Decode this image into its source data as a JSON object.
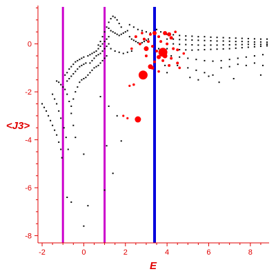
{
  "chart_data": {
    "type": "scatter",
    "title": "",
    "xlabel": "E",
    "ylabel": "<J3>",
    "xlim": [
      -2.2,
      8.9
    ],
    "ylim": [
      -8.3,
      1.6
    ],
    "xticks": [
      -2,
      0,
      2,
      4,
      6,
      8
    ],
    "yticks": [
      0,
      -2,
      -4,
      -6,
      -8
    ],
    "grid": false,
    "colors": {
      "axis": "#e00000",
      "black_points": "#000000",
      "red_points": "#ff0000",
      "magenta_lines": "#cc00cc",
      "blue_line": "#0000dd"
    },
    "vertical_lines": [
      {
        "x": -1.0,
        "color": "#cc00cc"
      },
      {
        "x": 1.0,
        "color": "#cc00cc"
      },
      {
        "x": 3.4,
        "color": "#0000dd"
      }
    ],
    "black_series": [
      [
        -2.0,
        -2.5
      ],
      [
        -1.9,
        -2.65
      ],
      [
        -1.8,
        -2.8
      ],
      [
        -1.7,
        -3.0
      ],
      [
        -1.6,
        -3.2
      ],
      [
        -1.5,
        -3.4
      ],
      [
        -1.4,
        -3.6
      ],
      [
        -1.3,
        -3.8
      ],
      [
        -1.2,
        -4.1
      ],
      [
        -1.1,
        -4.4
      ],
      [
        -1.05,
        -4.75
      ],
      [
        -1.5,
        -2.1
      ],
      [
        -1.4,
        -2.3
      ],
      [
        -1.3,
        -2.5
      ],
      [
        -1.2,
        -2.8
      ],
      [
        -1.1,
        -3.1
      ],
      [
        -0.95,
        -3.5
      ],
      [
        -0.85,
        -3.9
      ],
      [
        -0.75,
        -4.4
      ],
      [
        -0.8,
        -6.4
      ],
      [
        -0.6,
        -6.6
      ],
      [
        -1.3,
        -1.55
      ],
      [
        -1.2,
        -1.6
      ],
      [
        -1.1,
        -1.7
      ],
      [
        -1.0,
        -1.8
      ],
      [
        -0.9,
        -1.9
      ],
      [
        -0.8,
        -2.1
      ],
      [
        -0.7,
        -2.4
      ],
      [
        -0.6,
        -2.9
      ],
      [
        -0.5,
        -3.4
      ],
      [
        -0.4,
        -3.9
      ],
      [
        -0.9,
        -1.3
      ],
      [
        -0.8,
        -1.2
      ],
      [
        -0.7,
        -1.05
      ],
      [
        -0.6,
        -0.95
      ],
      [
        -0.5,
        -0.85
      ],
      [
        -0.4,
        -0.75
      ],
      [
        -0.3,
        -0.7
      ],
      [
        -0.2,
        -0.65
      ],
      [
        -0.1,
        -0.6
      ],
      [
        0.0,
        -0.55
      ],
      [
        -0.8,
        -1.55
      ],
      [
        -0.7,
        -1.45
      ],
      [
        -0.6,
        -1.35
      ],
      [
        -0.5,
        -1.25
      ],
      [
        -0.4,
        -1.15
      ],
      [
        -0.3,
        -1.05
      ],
      [
        -0.2,
        -0.95
      ],
      [
        -0.1,
        -0.9
      ],
      [
        0.0,
        -0.85
      ],
      [
        0.1,
        -0.8
      ],
      [
        -0.6,
        -2.6
      ],
      [
        -0.5,
        -2.3
      ],
      [
        -0.4,
        -2.0
      ],
      [
        -0.3,
        -1.8
      ],
      [
        -0.2,
        -1.6
      ],
      [
        -0.1,
        -1.5
      ],
      [
        0.0,
        -1.45
      ],
      [
        0.1,
        -1.4
      ],
      [
        0.2,
        -1.3
      ],
      [
        0.3,
        -1.2
      ],
      [
        0.2,
        -0.5
      ],
      [
        0.3,
        -0.45
      ],
      [
        0.4,
        -0.4
      ],
      [
        0.5,
        -0.35
      ],
      [
        0.6,
        -0.3
      ],
      [
        0.7,
        -0.2
      ],
      [
        0.8,
        -0.1
      ],
      [
        0.9,
        0.0
      ],
      [
        1.0,
        0.1
      ],
      [
        1.1,
        0.2
      ],
      [
        1.2,
        0.3
      ],
      [
        0.3,
        -0.8
      ],
      [
        0.4,
        -0.7
      ],
      [
        0.5,
        -0.6
      ],
      [
        0.6,
        -0.5
      ],
      [
        0.7,
        -0.45
      ],
      [
        0.8,
        -0.4
      ],
      [
        0.9,
        -0.3
      ],
      [
        1.0,
        -0.2
      ],
      [
        1.1,
        -0.1
      ],
      [
        1.2,
        0.0
      ],
      [
        0.4,
        -1.1
      ],
      [
        0.5,
        -1.0
      ],
      [
        0.6,
        -0.95
      ],
      [
        0.7,
        -0.9
      ],
      [
        0.8,
        -0.8
      ],
      [
        0.9,
        -0.7
      ],
      [
        1.0,
        -0.6
      ],
      [
        1.1,
        -0.5
      ],
      [
        0.7,
        -0.05
      ],
      [
        0.8,
        0.1
      ],
      [
        0.9,
        0.3
      ],
      [
        1.0,
        0.5
      ],
      [
        1.1,
        0.7
      ],
      [
        1.2,
        0.9
      ],
      [
        1.3,
        1.05
      ],
      [
        1.4,
        1.15
      ],
      [
        1.5,
        1.1
      ],
      [
        1.6,
        1.0
      ],
      [
        1.7,
        0.85
      ],
      [
        1.8,
        0.7
      ],
      [
        1.2,
        0.65
      ],
      [
        1.3,
        0.55
      ],
      [
        1.4,
        0.5
      ],
      [
        1.5,
        0.45
      ],
      [
        1.6,
        0.4
      ],
      [
        1.7,
        0.35
      ],
      [
        1.8,
        0.4
      ],
      [
        1.9,
        0.45
      ],
      [
        2.0,
        0.5
      ],
      [
        2.1,
        0.55
      ],
      [
        1.3,
        -0.2
      ],
      [
        1.5,
        -0.3
      ],
      [
        1.7,
        -0.35
      ],
      [
        1.9,
        -0.4
      ],
      [
        2.1,
        -0.35
      ],
      [
        2.3,
        -0.3
      ],
      [
        0.0,
        -4.6
      ],
      [
        0.2,
        -6.75
      ],
      [
        0.0,
        -7.6
      ],
      [
        1.0,
        -6.1
      ],
      [
        1.1,
        -4.25
      ],
      [
        1.4,
        -5.4
      ],
      [
        1.8,
        -4.05
      ],
      [
        1.6,
        -3.0
      ],
      [
        1.2,
        -2.6
      ],
      [
        0.8,
        -2.2
      ],
      [
        2.2,
        0.3
      ],
      [
        2.3,
        0.2
      ],
      [
        2.4,
        0.15
      ],
      [
        2.5,
        0.1
      ],
      [
        2.6,
        0.05
      ],
      [
        2.7,
        0.0
      ],
      [
        2.8,
        0.05
      ],
      [
        2.9,
        0.1
      ],
      [
        3.0,
        0.15
      ],
      [
        3.1,
        0.2
      ],
      [
        2.2,
        0.8
      ],
      [
        2.4,
        0.7
      ],
      [
        2.6,
        0.6
      ],
      [
        2.8,
        0.55
      ],
      [
        3.0,
        0.5
      ],
      [
        3.2,
        0.45
      ],
      [
        3.4,
        0.4
      ],
      [
        4.0,
        0.4
      ],
      [
        4.3,
        0.38
      ],
      [
        4.6,
        0.35
      ],
      [
        4.9,
        0.33
      ],
      [
        5.2,
        0.32
      ],
      [
        5.5,
        0.3
      ],
      [
        5.8,
        0.3
      ],
      [
        6.1,
        0.28
      ],
      [
        6.4,
        0.27
      ],
      [
        6.7,
        0.26
      ],
      [
        7.0,
        0.25
      ],
      [
        7.3,
        0.24
      ],
      [
        7.6,
        0.23
      ],
      [
        7.9,
        0.22
      ],
      [
        8.2,
        0.21
      ],
      [
        8.5,
        0.2
      ],
      [
        8.8,
        0.2
      ],
      [
        4.0,
        0.2
      ],
      [
        4.3,
        0.2
      ],
      [
        4.6,
        0.18
      ],
      [
        4.9,
        0.17
      ],
      [
        5.2,
        0.16
      ],
      [
        5.5,
        0.15
      ],
      [
        5.8,
        0.14
      ],
      [
        6.1,
        0.13
      ],
      [
        6.4,
        0.12
      ],
      [
        6.7,
        0.12
      ],
      [
        7.0,
        0.11
      ],
      [
        7.3,
        0.1
      ],
      [
        7.6,
        0.1
      ],
      [
        7.9,
        0.09
      ],
      [
        8.2,
        0.08
      ],
      [
        8.5,
        0.08
      ],
      [
        8.8,
        0.07
      ],
      [
        4.0,
        0.0
      ],
      [
        4.3,
        0.0
      ],
      [
        4.6,
        -0.02
      ],
      [
        4.9,
        -0.03
      ],
      [
        5.2,
        -0.04
      ],
      [
        5.5,
        -0.05
      ],
      [
        5.8,
        -0.06
      ],
      [
        6.1,
        -0.05
      ],
      [
        6.4,
        -0.05
      ],
      [
        6.7,
        -0.04
      ],
      [
        7.0,
        -0.04
      ],
      [
        7.3,
        -0.03
      ],
      [
        7.6,
        -0.03
      ],
      [
        7.9,
        -0.02
      ],
      [
        8.2,
        -0.02
      ],
      [
        8.5,
        -0.02
      ],
      [
        8.8,
        -0.01
      ],
      [
        4.0,
        -0.2
      ],
      [
        4.3,
        -0.22
      ],
      [
        4.6,
        -0.24
      ],
      [
        4.9,
        -0.25
      ],
      [
        5.2,
        -0.26
      ],
      [
        5.5,
        -0.25
      ],
      [
        5.8,
        -0.24
      ],
      [
        6.1,
        -0.23
      ],
      [
        6.4,
        -0.22
      ],
      [
        6.7,
        -0.21
      ],
      [
        7.0,
        -0.2
      ],
      [
        7.3,
        -0.18
      ],
      [
        7.6,
        -0.16
      ],
      [
        7.9,
        -0.14
      ],
      [
        8.2,
        -0.12
      ],
      [
        8.5,
        -0.1
      ],
      [
        8.8,
        -0.08
      ],
      [
        4.2,
        -0.5
      ],
      [
        4.6,
        -0.55
      ],
      [
        5.0,
        -0.6
      ],
      [
        5.4,
        -0.65
      ],
      [
        5.8,
        -0.7
      ],
      [
        6.2,
        -0.72
      ],
      [
        6.6,
        -0.7
      ],
      [
        7.0,
        -0.65
      ],
      [
        7.4,
        -0.6
      ],
      [
        7.8,
        -0.55
      ],
      [
        8.2,
        -0.5
      ],
      [
        8.6,
        -0.45
      ],
      [
        4.5,
        -0.9
      ],
      [
        5.0,
        -1.0
      ],
      [
        5.4,
        -1.1
      ],
      [
        5.8,
        -1.2
      ],
      [
        6.2,
        -1.3
      ],
      [
        6.6,
        -1.0
      ],
      [
        7.0,
        -0.95
      ],
      [
        7.4,
        -0.85
      ],
      [
        7.8,
        -0.9
      ],
      [
        8.2,
        -0.8
      ],
      [
        8.6,
        -0.9
      ],
      [
        5.1,
        -1.4
      ],
      [
        5.5,
        -1.5
      ],
      [
        6.0,
        -1.35
      ],
      [
        6.5,
        -1.6
      ],
      [
        7.2,
        -1.45
      ],
      [
        8.5,
        -1.3
      ],
      [
        3.5,
        0.6
      ],
      [
        3.7,
        0.5
      ],
      [
        3.9,
        0.45
      ],
      [
        3.6,
        -0.2
      ],
      [
        3.8,
        -0.4
      ],
      [
        3.9,
        -0.9
      ],
      [
        4.0,
        -1.2
      ]
    ],
    "red_series": [
      {
        "x": 2.85,
        "y": -1.3,
        "size": 6.5
      },
      {
        "x": 2.6,
        "y": -3.15,
        "size": 4.5
      },
      {
        "x": 3.8,
        "y": -0.35,
        "size": 6.5
      },
      {
        "x": 3.0,
        "y": -0.2,
        "size": 3.5
      },
      {
        "x": 3.9,
        "y": -0.5,
        "size": 3.5
      },
      {
        "x": 3.6,
        "y": -0.55,
        "size": 3.0
      },
      {
        "x": 3.2,
        "y": -0.95,
        "size": 3.5
      },
      {
        "x": 3.3,
        "y": -1.0,
        "size": 2.5
      },
      {
        "x": 3.4,
        "y": 0.45,
        "size": 3.0
      },
      {
        "x": 3.9,
        "y": 0.45,
        "size": 3.0
      },
      {
        "x": 4.1,
        "y": 0.4,
        "size": 3.0
      },
      {
        "x": 4.2,
        "y": 0.25,
        "size": 2.5
      },
      {
        "x": 2.7,
        "y": 0.0,
        "size": 2.0
      },
      {
        "x": 2.9,
        "y": 0.2,
        "size": 2.0
      },
      {
        "x": 3.1,
        "y": 0.1,
        "size": 2.0
      },
      {
        "x": 3.3,
        "y": -0.1,
        "size": 2.0
      },
      {
        "x": 3.5,
        "y": -0.3,
        "size": 2.0
      },
      {
        "x": 3.7,
        "y": 0.1,
        "size": 2.0
      },
      {
        "x": 4.0,
        "y": 0.0,
        "size": 2.0
      },
      {
        "x": 4.3,
        "y": -0.2,
        "size": 2.0
      },
      {
        "x": 4.5,
        "y": -0.25,
        "size": 2.0
      },
      {
        "x": 4.2,
        "y": -0.6,
        "size": 2.0
      },
      {
        "x": 4.5,
        "y": -0.8,
        "size": 2.0
      },
      {
        "x": 4.1,
        "y": -0.9,
        "size": 2.0
      },
      {
        "x": 4.6,
        "y": -1.0,
        "size": 1.8
      },
      {
        "x": 3.6,
        "y": -1.15,
        "size": 1.8
      },
      {
        "x": 3.4,
        "y": -0.75,
        "size": 2.0
      },
      {
        "x": 2.5,
        "y": 0.3,
        "size": 2.0
      },
      {
        "x": 2.3,
        "y": -0.2,
        "size": 1.8
      },
      {
        "x": 2.4,
        "y": -1.7,
        "size": 1.8
      },
      {
        "x": 2.2,
        "y": -1.75,
        "size": 1.6
      },
      {
        "x": 1.9,
        "y": -3.0,
        "size": 1.6
      },
      {
        "x": 2.1,
        "y": -3.1,
        "size": 1.6
      },
      {
        "x": 3.6,
        "y": 0.3,
        "size": 2.0
      },
      {
        "x": 3.2,
        "y": 0.4,
        "size": 2.0
      },
      {
        "x": 4.4,
        "y": 0.5,
        "size": 1.8
      },
      {
        "x": 2.8,
        "y": 0.45,
        "size": 1.8
      },
      {
        "x": 3.0,
        "y": -0.5,
        "size": 2.0
      },
      {
        "x": 3.8,
        "y": -0.7,
        "size": 2.0
      },
      {
        "x": 4.8,
        "y": -0.4,
        "size": 1.8
      }
    ]
  }
}
